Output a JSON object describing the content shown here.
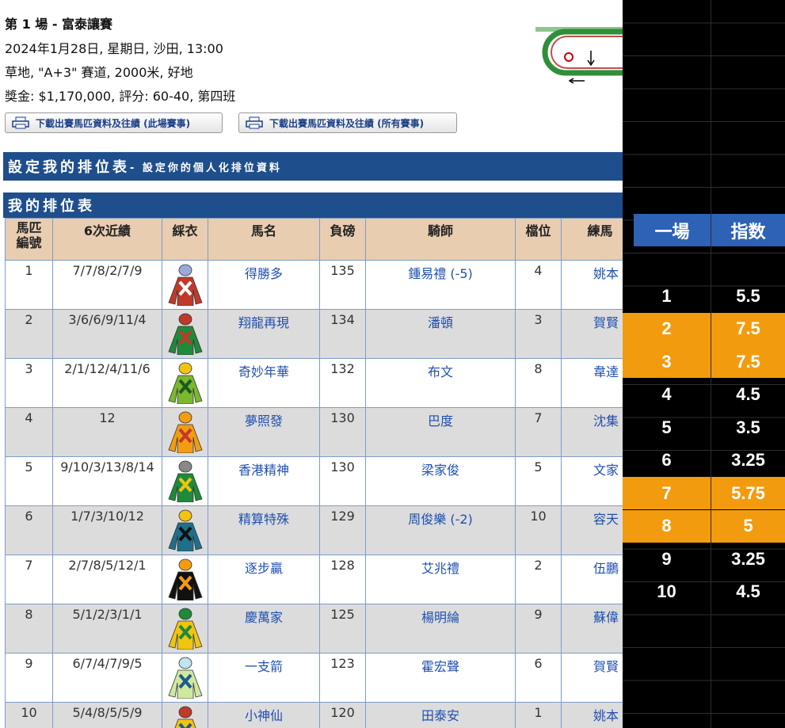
{
  "race": {
    "title": "第 1 場 - 富泰讓賽",
    "datetime": "2024年1月28日, 星期日, 沙田, 13:00",
    "track": "草地, \"A+3\" 賽道, 2000米, 好地",
    "prize": "獎金: $1,170,000, 評分: 60-40, 第四班"
  },
  "buttons": [
    "下載出賽馬匹資料及往績 (此場賽事)",
    "下載出賽馬匹資料及往績 (所有賽事)"
  ],
  "banner": {
    "title": "設定我的排位表",
    "subtitle": "- 設定你的個人化排位資料"
  },
  "table": {
    "title": "我的排位表",
    "headers": [
      "馬匹編號",
      "6次近績",
      "綵衣",
      "馬名",
      "負磅",
      "騎師",
      "檔位",
      "練馬"
    ],
    "rows": [
      [
        1,
        "7/7/8/2/7/9",
        "得勝多",
        135,
        "鍾易禮 (-5)",
        4,
        "姚本"
      ],
      [
        2,
        "3/6/6/9/11/4",
        "翔龍再現",
        134,
        "潘頓",
        3,
        "賀賢"
      ],
      [
        3,
        "2/1/12/4/11/6",
        "奇妙年華",
        132,
        "布文",
        8,
        "韋達"
      ],
      [
        4,
        "12",
        "夢照發",
        130,
        "巴度",
        7,
        "沈集"
      ],
      [
        5,
        "9/10/3/13/8/14",
        "香港精神",
        130,
        "梁家俊",
        5,
        "文家"
      ],
      [
        6,
        "1/7/3/10/12",
        "精算特殊",
        129,
        "周俊樂 (-2)",
        10,
        "容天"
      ],
      [
        7,
        "2/7/8/5/12/1",
        "逐步贏",
        128,
        "艾兆禮",
        2,
        "伍鵬"
      ],
      [
        8,
        "5/1/2/3/1/1",
        "慶萬家",
        125,
        "楊明綸",
        9,
        "蘇偉"
      ],
      [
        9,
        "6/7/4/7/9/5",
        "一支箭",
        123,
        "霍宏聲",
        6,
        "賀賢"
      ],
      [
        10,
        "5/4/8/5/5/9",
        "小神仙",
        120,
        "田泰安",
        1,
        "姚本"
      ]
    ]
  },
  "sheet": {
    "headers": [
      "一場",
      "指数"
    ],
    "rows": [
      {
        "race": 1,
        "index": 5.5,
        "highlight": false
      },
      {
        "race": 2,
        "index": 7.5,
        "highlight": true
      },
      {
        "race": 3,
        "index": 7.5,
        "highlight": true
      },
      {
        "race": 4,
        "index": 4.5,
        "highlight": false
      },
      {
        "race": 5,
        "index": 3.5,
        "highlight": false
      },
      {
        "race": 6,
        "index": 3.25,
        "highlight": false
      },
      {
        "race": 7,
        "index": 5.75,
        "highlight": true
      },
      {
        "race": 8,
        "index": 5,
        "highlight": true
      },
      {
        "race": 9,
        "index": 3.25,
        "highlight": false
      },
      {
        "race": 10,
        "index": 4.5,
        "highlight": false
      }
    ]
  }
}
